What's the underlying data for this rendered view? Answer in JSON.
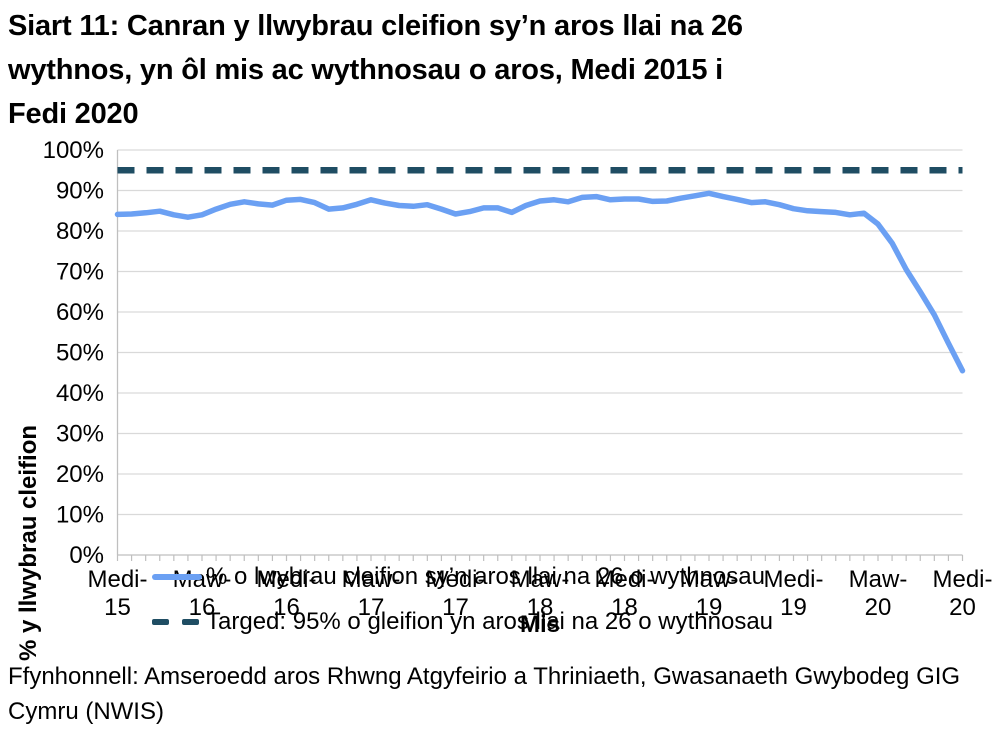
{
  "title": "Siart 11: Canran y llwybrau cleifion sy’n aros llai na 26\nwythnos, yn ôl mis ac wythnosau o aros, Medi 2015 i\nFedi 2020",
  "source": "Ffynhonnell: Amseroedd aros Rhwng Atgyfeirio a Thriniaeth, Gwasanaeth Gwybodeg GIG\nCymru (NWIS)",
  "chart_data": {
    "type": "line",
    "title": "Siart 11: Canran y llwybrau cleifion sy’n aros llai na 26 wythnos, yn ôl mis ac wythnosau o aros, Medi 2015 i Fedi 2020",
    "xlabel": "Mis",
    "ylabel": "% y llwybrau cleifion",
    "ylim": [
      0,
      100
    ],
    "y_ticks": [
      0,
      10,
      20,
      30,
      40,
      50,
      60,
      70,
      80,
      90,
      100
    ],
    "y_tick_suffix": "%",
    "grid": "horizontal",
    "grid_color": "#D9D9D9",
    "axis_color": "#BFBFBF",
    "legend_position": "inside-left",
    "frequency": "monthly",
    "x_range": [
      "Medi 2015",
      "Medi 2020"
    ],
    "x_tick_indices": [
      0,
      6,
      12,
      18,
      24,
      30,
      36,
      42,
      48,
      54,
      60
    ],
    "x_tick_labels": [
      [
        "Medi-",
        "15"
      ],
      [
        "Maw-",
        "16"
      ],
      [
        "Medi-",
        "16"
      ],
      [
        "Maw-",
        "17"
      ],
      [
        "Medi-",
        "17"
      ],
      [
        "Maw-",
        "18"
      ],
      [
        "Medi-",
        "18"
      ],
      [
        "Maw-",
        "19"
      ],
      [
        "Medi-",
        "19"
      ],
      [
        "Maw-",
        "20"
      ],
      [
        "Medi-",
        "20"
      ]
    ],
    "series": [
      {
        "name": "% o lwybrau cleifion sy’n aros llai na 26 o wythnosau",
        "color": "#6BA0F3",
        "style": "solid",
        "values": [
          84.1,
          84.2,
          84.5,
          84.9,
          84.0,
          83.4,
          84.0,
          85.4,
          86.6,
          87.2,
          86.7,
          86.4,
          87.6,
          87.8,
          87.0,
          85.4,
          85.7,
          86.6,
          87.7,
          86.9,
          86.3,
          86.1,
          86.5,
          85.4,
          84.2,
          84.8,
          85.7,
          85.7,
          84.6,
          86.3,
          87.4,
          87.7,
          87.2,
          88.3,
          88.5,
          87.7,
          87.9,
          87.9,
          87.3,
          87.4,
          88.1,
          88.7,
          89.3,
          88.5,
          87.8,
          87.0,
          87.2,
          86.5,
          85.5,
          85.0,
          84.8,
          84.6,
          84.0,
          84.4,
          81.7,
          77.0,
          70.5,
          65.0,
          59.3,
          52.3,
          45.5
        ]
      },
      {
        "name": "Targed: 95% o gleifion yn aros llai na 26 o wythnosau",
        "color": "#1F4D63",
        "style": "dashed",
        "value": 95
      }
    ]
  }
}
